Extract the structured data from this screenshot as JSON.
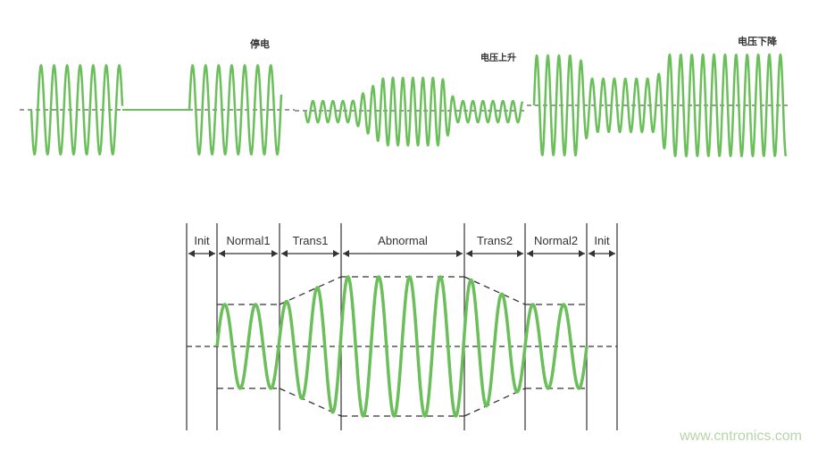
{
  "top_labels": {
    "outage": "停电",
    "voltage_rise": "电压上升",
    "voltage_drop": "电压下降"
  },
  "segments": [
    "Init",
    "Normal1",
    "Trans1",
    "Abnormal",
    "Trans2",
    "Normal2",
    "Init"
  ],
  "watermark": "www.cntronics.com",
  "colors": {
    "wave": "#6abf5a",
    "line": "#333333"
  }
}
